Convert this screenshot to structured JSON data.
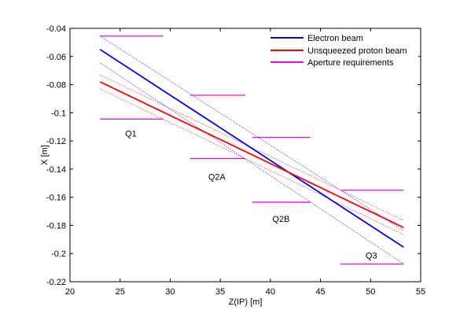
{
  "chart_data": {
    "type": "line",
    "xlabel": "Z(IP) [m]",
    "ylabel": "X [m]",
    "xlim": [
      20,
      55
    ],
    "ylim": [
      -0.22,
      -0.04
    ],
    "xticks": [
      20,
      25,
      30,
      35,
      40,
      45,
      50,
      55
    ],
    "yticks": [
      -0.04,
      -0.06,
      -0.08,
      -0.1,
      -0.12,
      -0.14,
      -0.16,
      -0.18,
      -0.2,
      -0.22
    ],
    "xtick_labels": [
      "20",
      "25",
      "30",
      "35",
      "40",
      "45",
      "50",
      "55"
    ],
    "ytick_labels": [
      "-0.04",
      "-0.06",
      "-0.08",
      "-0.1",
      "-0.12",
      "-0.14",
      "-0.16",
      "-0.18",
      "-0.2",
      "-0.22"
    ],
    "grid": false,
    "legend_position": "top-right",
    "series": [
      {
        "name": "Electron beam",
        "color": "#0000ff",
        "x": [
          23,
          53.3
        ],
        "y": [
          -0.055,
          -0.1955
        ]
      },
      {
        "name": "Unsqueezed proton beam",
        "color": "#ff0000",
        "x": [
          23,
          53.3
        ],
        "y": [
          -0.078,
          -0.1815
        ]
      },
      {
        "name": "Aperture requirements",
        "color": "#ff00ff",
        "x": [],
        "y": []
      }
    ],
    "envelopes": [
      {
        "color": "#0000ff",
        "x": [
          23,
          53.3
        ],
        "upper": [
          -0.0455,
          -0.1837
        ],
        "lower": [
          -0.0645,
          -0.2073
        ]
      },
      {
        "color": "#ff0000",
        "x": [
          23,
          53.3
        ],
        "upper": [
          -0.073,
          -0.1765
        ],
        "lower": [
          -0.083,
          -0.1865
        ]
      }
    ],
    "apertures": [
      {
        "label": "Q1",
        "x": [
          23,
          29.3
        ],
        "y_upper": -0.0455,
        "y_lower": -0.1045,
        "label_x": 25.5,
        "label_y": -0.117
      },
      {
        "label": "Q2A",
        "x": [
          32,
          37.5
        ],
        "y_upper": -0.0875,
        "y_lower": -0.1325,
        "label_x": 33.8,
        "label_y": -0.1475
      },
      {
        "label": "Q2B",
        "x": [
          38.2,
          44
        ],
        "y_upper": -0.1175,
        "y_lower": -0.1635,
        "label_x": 40.2,
        "label_y": -0.1775
      },
      {
        "label": "Q3",
        "x": [
          47,
          53.3
        ],
        "y_upper": -0.155,
        "y_lower": -0.2075,
        "label_x": 49.5,
        "label_y": -0.2035
      }
    ]
  }
}
